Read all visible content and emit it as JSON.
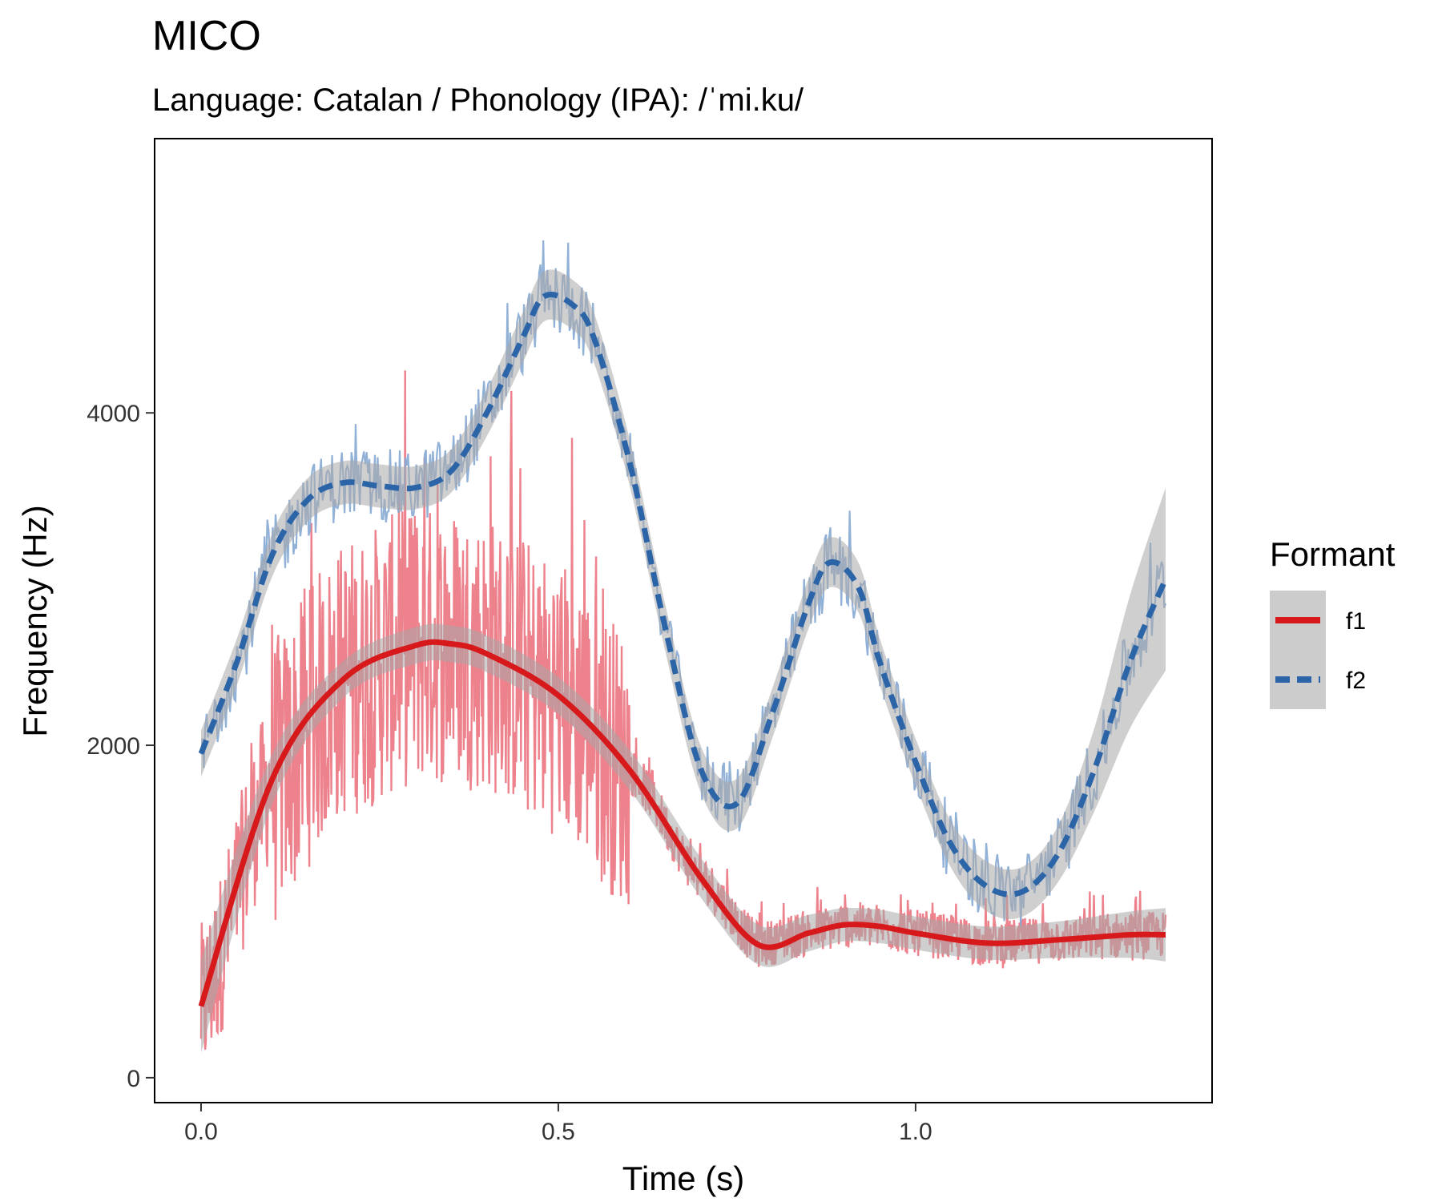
{
  "chart_data": {
    "type": "line",
    "title": "MICO",
    "subtitle": "Language: Catalan / Phonology (IPA): /ˈmi.ku/",
    "xlabel": "Time (s)",
    "ylabel": "Frequency (Hz)",
    "xlim": [
      -0.065,
      1.415
    ],
    "ylim": [
      -150,
      5650
    ],
    "x_ticks": [
      0.0,
      0.5,
      1.0
    ],
    "x_tick_labels": [
      "0.0",
      "0.5",
      "1.0"
    ],
    "y_ticks": [
      0,
      2000,
      4000
    ],
    "y_tick_labels": [
      "0",
      "2000",
      "4000"
    ],
    "grid": false,
    "legend": {
      "title": "Formant",
      "position": "right",
      "entries": [
        {
          "label": "f1",
          "color": "#d7191c",
          "style": "solid"
        },
        {
          "label": "f2",
          "color": "#2c64a8",
          "style": "dashed"
        }
      ]
    },
    "series": [
      {
        "name": "f1",
        "color": "#d7191c",
        "raw_color": "#ec7a86",
        "style": "solid",
        "smooth": {
          "x": [
            0.0,
            0.1,
            0.2,
            0.3,
            0.35,
            0.4,
            0.5,
            0.6,
            0.7,
            0.78,
            0.85,
            0.9,
            0.95,
            1.0,
            1.1,
            1.2,
            1.3,
            1.35
          ],
          "y": [
            430,
            1800,
            2400,
            2600,
            2610,
            2550,
            2300,
            1850,
            1200,
            800,
            870,
            920,
            910,
            870,
            810,
            830,
            860,
            860
          ]
        },
        "band_halfwidth": [
          280,
          150,
          110,
          110,
          110,
          110,
          110,
          120,
          120,
          120,
          110,
          100,
          100,
          100,
          100,
          110,
          140,
          160
        ]
      },
      {
        "name": "f2",
        "color": "#2c64a8",
        "raw_color": "#86a9d3",
        "style": "dashed",
        "smooth": {
          "x": [
            0.0,
            0.05,
            0.1,
            0.15,
            0.2,
            0.25,
            0.3,
            0.35,
            0.4,
            0.45,
            0.48,
            0.52,
            0.55,
            0.6,
            0.65,
            0.7,
            0.75,
            0.8,
            0.85,
            0.88,
            0.92,
            0.95,
            1.0,
            1.05,
            1.1,
            1.15,
            1.2,
            1.25,
            1.3,
            1.35
          ],
          "y": [
            1950,
            2500,
            3150,
            3480,
            3580,
            3560,
            3550,
            3650,
            4000,
            4450,
            4700,
            4650,
            4450,
            3700,
            2700,
            1850,
            1650,
            2200,
            2850,
            3100,
            2950,
            2500,
            1900,
            1400,
            1150,
            1120,
            1350,
            1850,
            2500,
            3000
          ]
        },
        "band_halfwidth": [
          140,
          140,
          130,
          130,
          130,
          130,
          130,
          130,
          140,
          150,
          150,
          150,
          150,
          140,
          140,
          140,
          150,
          150,
          150,
          150,
          150,
          140,
          140,
          140,
          150,
          150,
          170,
          250,
          400,
          550
        ]
      }
    ]
  }
}
